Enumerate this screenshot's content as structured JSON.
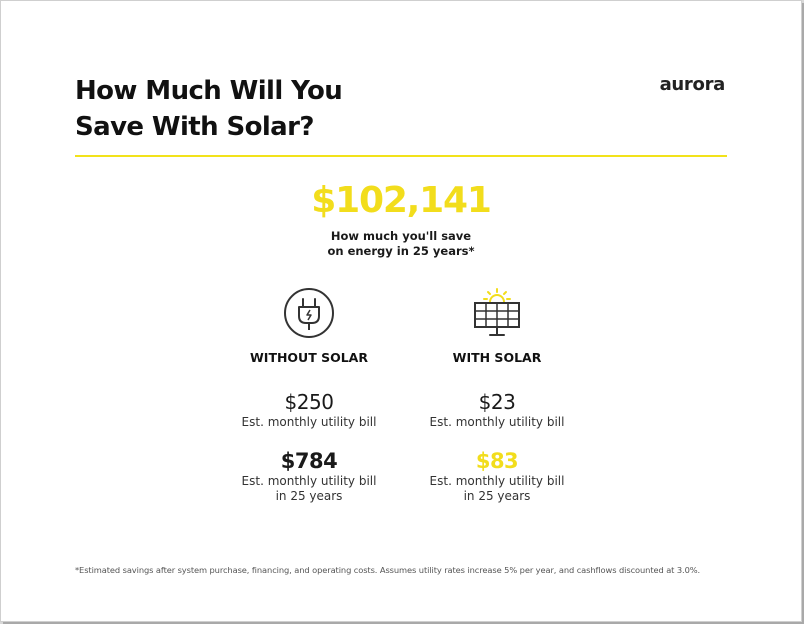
{
  "header": {
    "title_line1": "How Much Will You",
    "title_line2": "Save With Solar?",
    "logo_text": "aurora"
  },
  "savings": {
    "amount": "$102,141",
    "caption_line1": "How much you'll save",
    "caption_line2": "on energy in 25 years*"
  },
  "without_solar": {
    "icon": "electric-plug-icon",
    "heading": "WITHOUT SOLAR",
    "monthly_amount": "$250",
    "monthly_label": "Est. monthly utility bill",
    "future_amount": "$784",
    "future_label_line1": "Est. monthly utility bill",
    "future_label_line2": "in 25 years"
  },
  "with_solar": {
    "icon": "solar-panel-icon",
    "heading": "WITH SOLAR",
    "monthly_amount": "$23",
    "monthly_label": "Est. monthly utility bill",
    "future_amount": "$83",
    "future_label_line1": "Est. monthly utility bill",
    "future_label_line2": "in 25 years"
  },
  "footnote": "*Estimated savings after system purchase, financing, and operating costs. Assumes utility rates increase 5% per year, and cashflows discounted at 3.0%.",
  "colors": {
    "accent_yellow": "#f2dd1c",
    "text_dark": "#111111"
  }
}
